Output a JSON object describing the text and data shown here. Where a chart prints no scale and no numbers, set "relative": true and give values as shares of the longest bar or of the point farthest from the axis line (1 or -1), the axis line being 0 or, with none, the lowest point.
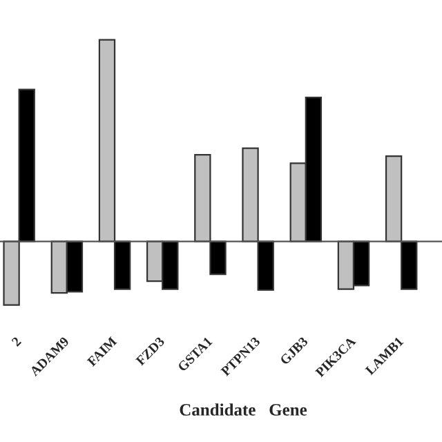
{
  "chart_data": {
    "type": "bar",
    "relative": true,
    "xlabel": "Candidate   Gene",
    "categories": [
      "2",
      "ADAM9",
      "FAIM",
      "FZD3",
      "GSTA1",
      "PTPN13",
      "GJB3",
      "PIK3CA",
      "LAMB1"
    ],
    "series": [
      {
        "color": "#c0c0c0",
        "values": [
          -0.315,
          -0.255,
          1.0,
          -0.197,
          0.43,
          0.462,
          0.388,
          -0.236,
          0.423
        ]
      },
      {
        "color": "#000000",
        "values": [
          0.753,
          -0.249,
          -0.236,
          -0.236,
          -0.163,
          -0.241,
          0.714,
          -0.218,
          -0.236
        ]
      }
    ],
    "grid": false,
    "legend": false
  }
}
